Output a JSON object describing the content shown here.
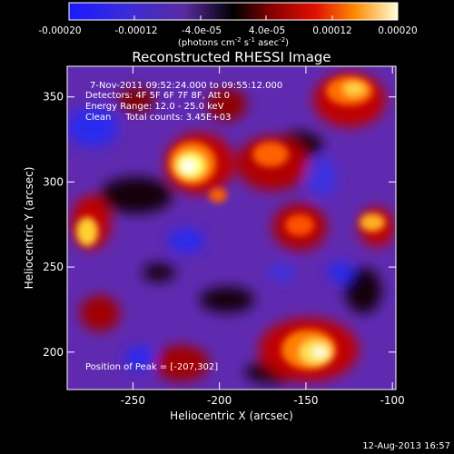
{
  "colorbar": {
    "tick_labels": [
      "-0.00020",
      "-0.00012",
      "-4.0e-05",
      "4.0e-05",
      "0.00012",
      "0.00020"
    ],
    "unit_label_main": "(photons cm",
    "unit_sup_1": "-2",
    "unit_mid_1": " s",
    "unit_sup_2": "-1",
    "unit_mid_2": " asec",
    "unit_sup_3": "-2",
    "unit_close": ")"
  },
  "title": "Reconstructed RHESSI Image",
  "annotations": {
    "time_range": "7-Nov-2011 09:52:24.000 to 09:55:12.000",
    "detectors": "Detectors: 4F 5F 6F 7F 8F, Att 0",
    "energy_range": "Energy Range: 12.0 - 25.0 keV",
    "clean": "Clean     Total counts: 3.45E+03",
    "peak_position": "Position of Peak = [-207,302]"
  },
  "axes": {
    "xlabel": "Heliocentric X (arcsec)",
    "ylabel": "Heliocentric Y (arcsec)",
    "xlim": [
      -288,
      -98
    ],
    "ylim": [
      178,
      368
    ],
    "x_ticks": [
      -250,
      -200,
      -150,
      -100
    ],
    "x_tick_labels": [
      "-250",
      "-200",
      "-150",
      "-100"
    ],
    "y_ticks": [
      200,
      250,
      300,
      350
    ],
    "y_tick_labels": [
      "200",
      "250",
      "300",
      "350"
    ]
  },
  "footer_timestamp": "12-Aug-2013 16:57"
}
